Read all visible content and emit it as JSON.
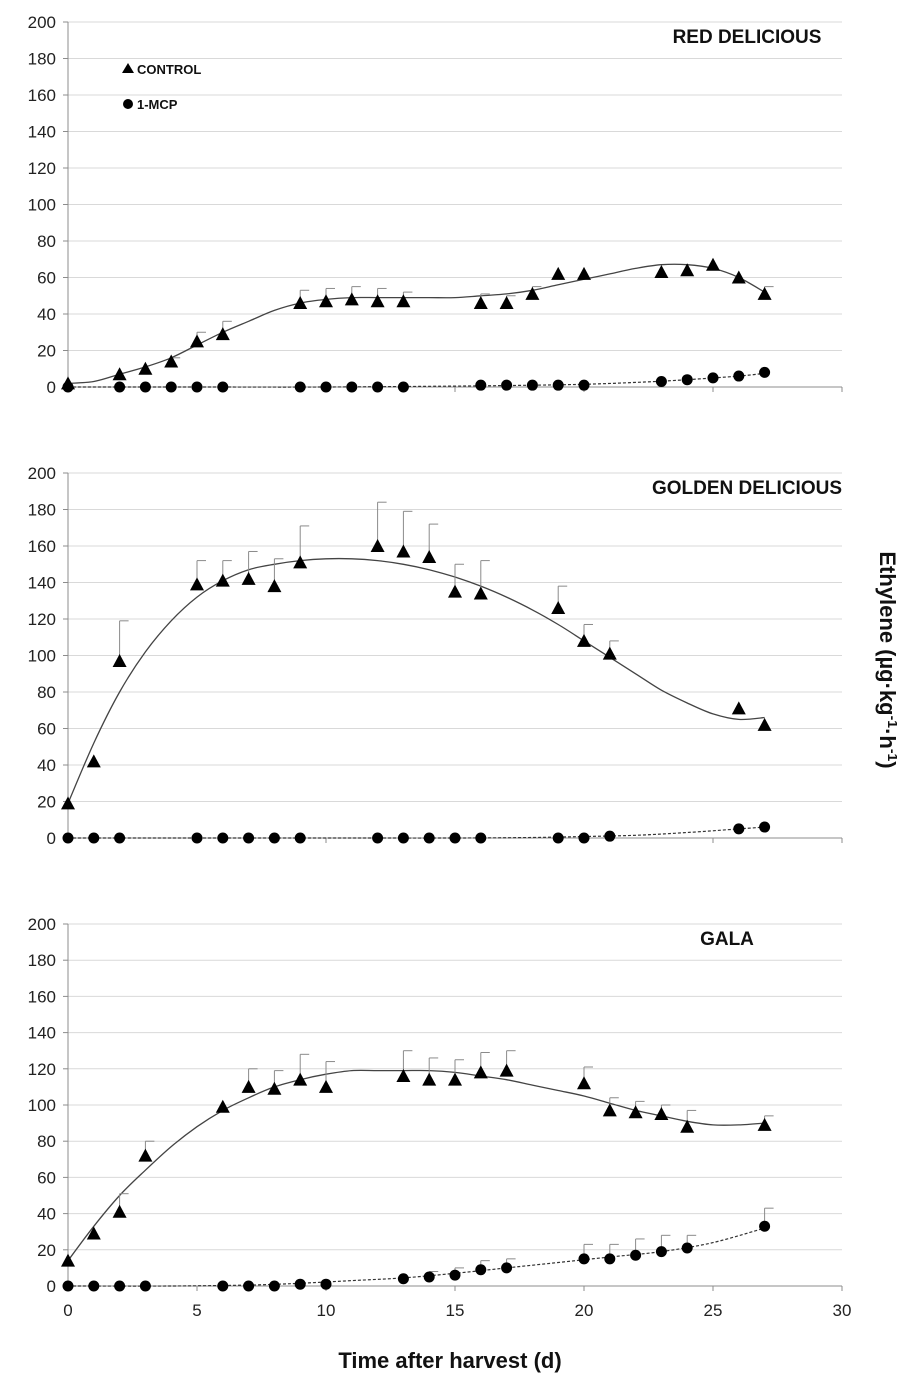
{
  "chart_data": [
    {
      "type": "scatter",
      "title": "RED DELICIOUS",
      "xlim": [
        0,
        30
      ],
      "ylim": [
        0,
        200
      ],
      "y_ticks": [
        0,
        20,
        40,
        60,
        80,
        100,
        120,
        140,
        160,
        180,
        200
      ],
      "x_ticks": [],
      "grid": true,
      "legend": {
        "placement": "top-left",
        "entries": [
          "CONTROL",
          "1-MCP"
        ]
      },
      "series": [
        {
          "name": "CONTROL",
          "marker": "triangle",
          "trend": "solid",
          "x": [
            0,
            2,
            3,
            4,
            5,
            6,
            9,
            10,
            11,
            12,
            13,
            16,
            17,
            18,
            19,
            20,
            23,
            24,
            25,
            26,
            27
          ],
          "y": [
            2,
            7,
            10,
            14,
            25,
            29,
            46,
            47,
            48,
            47,
            47,
            46,
            46,
            51,
            62,
            62,
            63,
            64,
            67,
            60,
            51
          ],
          "err": [
            0,
            0,
            0,
            2,
            5,
            7,
            7,
            7,
            7,
            7,
            5,
            5,
            4,
            4,
            0,
            0,
            0,
            0,
            0,
            0,
            4
          ]
        },
        {
          "name": "1-MCP",
          "marker": "circle",
          "trend": "dashed",
          "x": [
            0,
            2,
            3,
            4,
            5,
            6,
            9,
            10,
            11,
            12,
            13,
            16,
            17,
            18,
            19,
            20,
            23,
            24,
            25,
            26,
            27
          ],
          "y": [
            0,
            0,
            0,
            0,
            0,
            0,
            0,
            0,
            0,
            0,
            0,
            1,
            1,
            1,
            1,
            1,
            3,
            4,
            5,
            6,
            8
          ],
          "err": []
        }
      ],
      "fit": {
        "CONTROL": [
          [
            0,
            2
          ],
          [
            1,
            3
          ],
          [
            2,
            7
          ],
          [
            3,
            11
          ],
          [
            4,
            16
          ],
          [
            5,
            23
          ],
          [
            6,
            30
          ],
          [
            7,
            36
          ],
          [
            8,
            42
          ],
          [
            9,
            46
          ],
          [
            10,
            48
          ],
          [
            11,
            49
          ],
          [
            12,
            49
          ],
          [
            13,
            49
          ],
          [
            14,
            49
          ],
          [
            15,
            49
          ],
          [
            16,
            50
          ],
          [
            17,
            51
          ],
          [
            18,
            53
          ],
          [
            19,
            56
          ],
          [
            20,
            59
          ],
          [
            21,
            62
          ],
          [
            22,
            65
          ],
          [
            23,
            67
          ],
          [
            24,
            67
          ],
          [
            25,
            65
          ],
          [
            26,
            60
          ],
          [
            27,
            52
          ]
        ],
        "1-MCP": [
          [
            0,
            0
          ],
          [
            5,
            0
          ],
          [
            10,
            0
          ],
          [
            15,
            0.5
          ],
          [
            18,
            1
          ],
          [
            20,
            1.5
          ],
          [
            22,
            2.5
          ],
          [
            24,
            4
          ],
          [
            26,
            6
          ],
          [
            27,
            7.5
          ]
        ]
      }
    },
    {
      "type": "scatter",
      "title": "GOLDEN DELICIOUS",
      "xlim": [
        0,
        30
      ],
      "ylim": [
        0,
        200
      ],
      "y_ticks": [
        0,
        20,
        40,
        60,
        80,
        100,
        120,
        140,
        160,
        180,
        200
      ],
      "x_ticks": [],
      "grid": true,
      "series": [
        {
          "name": "CONTROL",
          "marker": "triangle",
          "trend": "solid",
          "x": [
            0,
            1,
            2,
            5,
            6,
            7,
            8,
            9,
            12,
            13,
            14,
            15,
            16,
            19,
            20,
            21,
            26,
            27
          ],
          "y": [
            19,
            42,
            97,
            139,
            141,
            142,
            138,
            151,
            160,
            157,
            154,
            135,
            134,
            126,
            108,
            101,
            71,
            62
          ],
          "err": [
            0,
            0,
            22,
            13,
            11,
            15,
            15,
            20,
            24,
            22,
            18,
            15,
            18,
            12,
            9,
            7,
            0,
            0
          ]
        },
        {
          "name": "1-MCP",
          "marker": "circle",
          "trend": "dashed",
          "x": [
            0,
            1,
            2,
            5,
            6,
            7,
            8,
            9,
            12,
            13,
            14,
            15,
            16,
            19,
            20,
            21,
            26,
            27
          ],
          "y": [
            0,
            0,
            0,
            0,
            0,
            0,
            0,
            0,
            0,
            0,
            0,
            0,
            0,
            0,
            0,
            1,
            5,
            6
          ],
          "err": []
        }
      ],
      "fit": {
        "CONTROL": [
          [
            0,
            19
          ],
          [
            1,
            52
          ],
          [
            2,
            80
          ],
          [
            3,
            102
          ],
          [
            4,
            119
          ],
          [
            5,
            132
          ],
          [
            6,
            141
          ],
          [
            7,
            147
          ],
          [
            8,
            150
          ],
          [
            9,
            152
          ],
          [
            10,
            153
          ],
          [
            11,
            153
          ],
          [
            12,
            152
          ],
          [
            13,
            150
          ],
          [
            14,
            147
          ],
          [
            15,
            143
          ],
          [
            16,
            138
          ],
          [
            17,
            132
          ],
          [
            18,
            125
          ],
          [
            19,
            117
          ],
          [
            20,
            108
          ],
          [
            21,
            99
          ],
          [
            22,
            90
          ],
          [
            23,
            81
          ],
          [
            24,
            74
          ],
          [
            25,
            68
          ],
          [
            26,
            65
          ],
          [
            27,
            66
          ]
        ],
        "1-MCP": [
          [
            0,
            0
          ],
          [
            10,
            0
          ],
          [
            15,
            0
          ],
          [
            18,
            0.3
          ],
          [
            20,
            0.8
          ],
          [
            22,
            1.5
          ],
          [
            24,
            3
          ],
          [
            26,
            5
          ],
          [
            27,
            6
          ]
        ]
      }
    },
    {
      "type": "scatter",
      "title": "GALA",
      "xlim": [
        0,
        30
      ],
      "ylim": [
        0,
        200
      ],
      "y_ticks": [
        0,
        20,
        40,
        60,
        80,
        100,
        120,
        140,
        160,
        180,
        200
      ],
      "x_ticks": [
        0,
        5,
        10,
        15,
        20,
        25,
        30
      ],
      "xlabel": "Time after harvest (d)",
      "grid": true,
      "series": [
        {
          "name": "CONTROL",
          "marker": "triangle",
          "trend": "solid",
          "x": [
            0,
            1,
            2,
            3,
            6,
            7,
            8,
            9,
            10,
            13,
            14,
            15,
            16,
            17,
            20,
            21,
            22,
            23,
            24,
            27
          ],
          "y": [
            14,
            29,
            41,
            72,
            99,
            110,
            109,
            114,
            110,
            116,
            114,
            114,
            118,
            119,
            112,
            97,
            96,
            95,
            88,
            89
          ],
          "err": [
            0,
            0,
            10,
            8,
            0,
            10,
            10,
            14,
            14,
            14,
            12,
            11,
            11,
            11,
            9,
            7,
            6,
            5,
            9,
            5
          ]
        },
        {
          "name": "1-MCP",
          "marker": "circle",
          "trend": "dashed",
          "x": [
            0,
            1,
            2,
            3,
            6,
            7,
            8,
            9,
            10,
            13,
            14,
            15,
            16,
            17,
            20,
            21,
            22,
            23,
            24,
            27
          ],
          "y": [
            0,
            0,
            0,
            0,
            0,
            0,
            0,
            1,
            1,
            4,
            5,
            6,
            9,
            10,
            15,
            15,
            17,
            19,
            21,
            33
          ],
          "err": [
            0,
            0,
            0,
            0,
            0,
            0,
            0,
            0,
            0,
            0,
            3,
            4,
            5,
            5,
            8,
            8,
            9,
            9,
            7,
            10
          ]
        }
      ],
      "fit": {
        "CONTROL": [
          [
            0,
            14
          ],
          [
            1,
            33
          ],
          [
            2,
            50
          ],
          [
            3,
            64
          ],
          [
            4,
            77
          ],
          [
            5,
            88
          ],
          [
            6,
            97
          ],
          [
            7,
            104
          ],
          [
            8,
            110
          ],
          [
            9,
            114
          ],
          [
            10,
            117
          ],
          [
            11,
            119
          ],
          [
            12,
            119
          ],
          [
            13,
            119
          ],
          [
            14,
            119
          ],
          [
            15,
            118
          ],
          [
            16,
            116
          ],
          [
            17,
            114
          ],
          [
            18,
            111
          ],
          [
            19,
            108
          ],
          [
            20,
            105
          ],
          [
            21,
            101
          ],
          [
            22,
            97
          ],
          [
            23,
            94
          ],
          [
            24,
            91
          ],
          [
            25,
            89
          ],
          [
            26,
            89
          ],
          [
            27,
            90
          ]
        ],
        "1-MCP": [
          [
            0,
            0
          ],
          [
            4,
            0
          ],
          [
            7,
            0.5
          ],
          [
            9,
            1.5
          ],
          [
            11,
            3
          ],
          [
            13,
            4.5
          ],
          [
            15,
            7
          ],
          [
            17,
            10
          ],
          [
            19,
            13
          ],
          [
            21,
            16
          ],
          [
            23,
            19
          ],
          [
            25,
            24
          ],
          [
            27,
            32
          ]
        ]
      }
    }
  ],
  "shared_ylabel": "Ethylene (µg·kg-1·h-1)",
  "shared_ylabel_parts": {
    "before": "Ethylene (µg·kg",
    "sup1": "-1",
    "mid": "·h",
    "sup2": "-1",
    "after": ")"
  }
}
